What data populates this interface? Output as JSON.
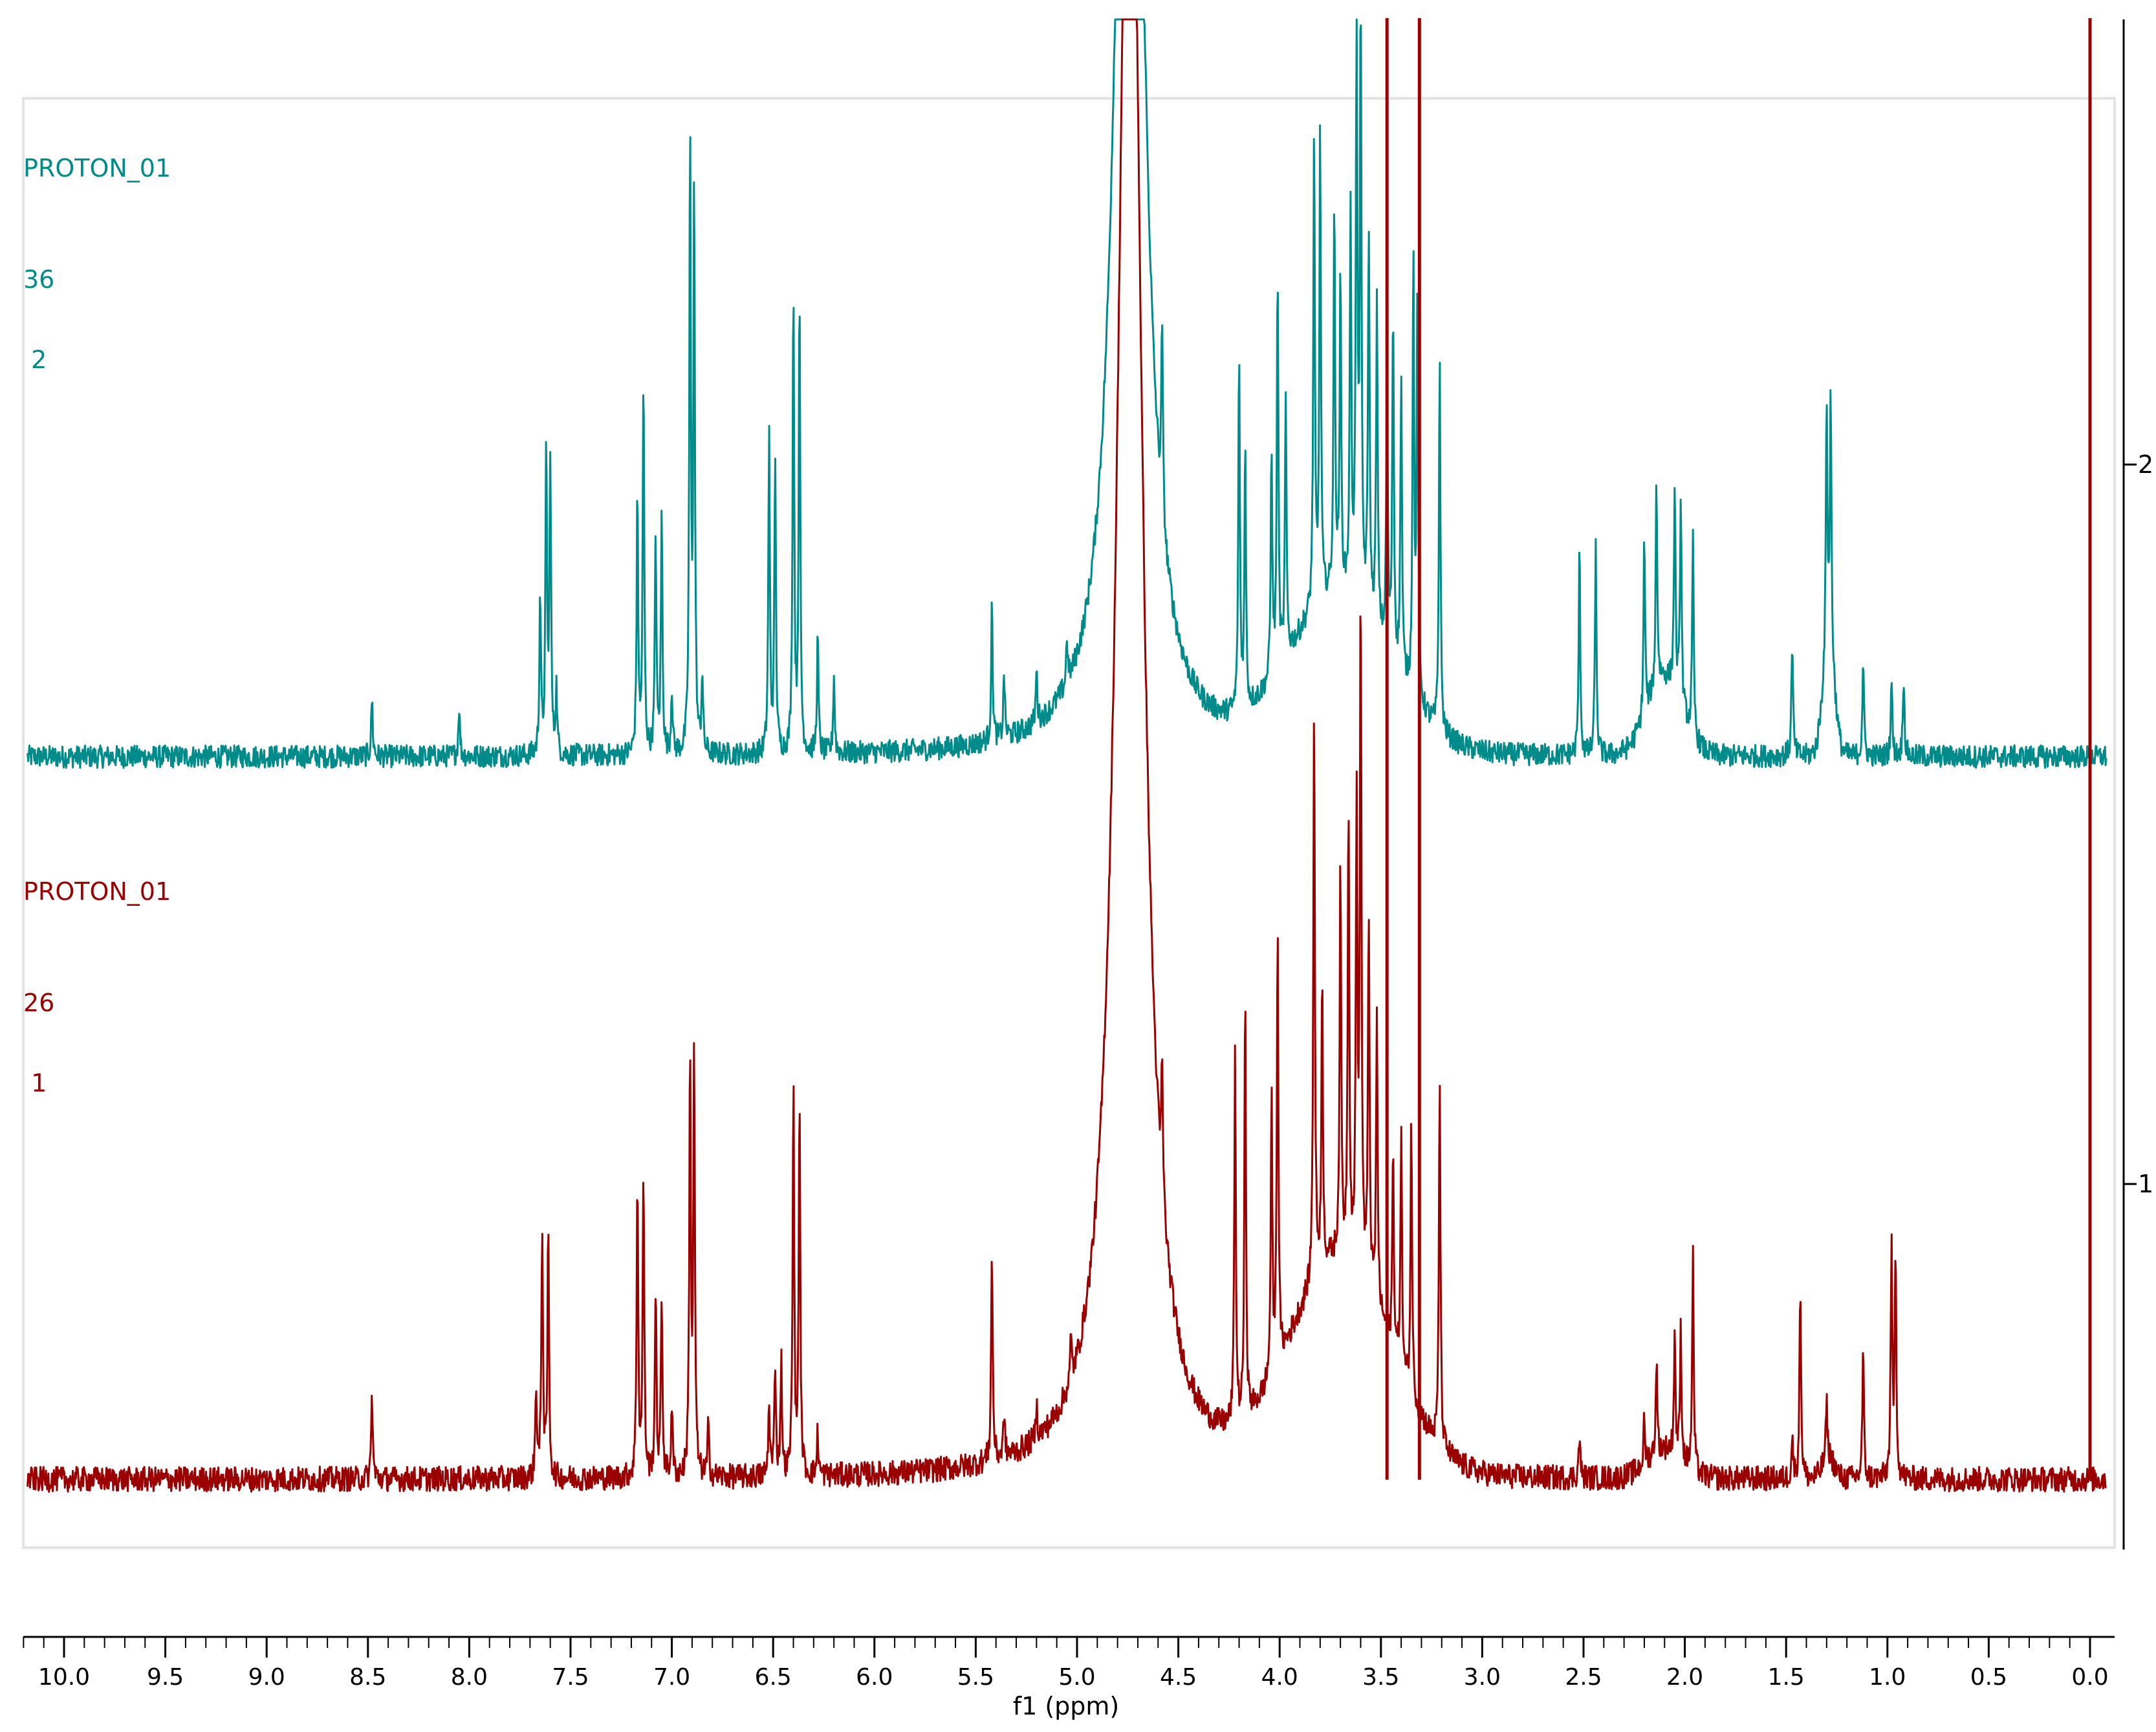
{
  "chart_data": {
    "type": "line",
    "xlabel": "f1 (ppm)",
    "x_reversed": true,
    "xlim": [
      10.2,
      -0.1
    ],
    "x_ticks": [
      "10.0",
      "9.5",
      "9.0",
      "8.5",
      "8.0",
      "7.5",
      "7.0",
      "6.5",
      "6.0",
      "5.5",
      "5.0",
      "4.5",
      "4.0",
      "3.5",
      "3.0",
      "2.5",
      "2.0",
      "1.5",
      "1.0",
      "0.5",
      "0.0"
    ],
    "right_axis_ticks": [
      "2",
      "1"
    ],
    "series": [
      {
        "name": "2",
        "label_lines": [
          "PROTON_01",
          "36",
          " 2"
        ],
        "color": "#008b8b",
        "peaks": [
          [
            8.48,
            0.09
          ],
          [
            8.05,
            0.08
          ],
          [
            7.65,
            0.25
          ],
          [
            7.62,
            0.47
          ],
          [
            7.6,
            0.46
          ],
          [
            7.57,
            0.1
          ],
          [
            7.17,
            0.4
          ],
          [
            7.14,
            0.58
          ],
          [
            7.08,
            0.34
          ],
          [
            7.05,
            0.37
          ],
          [
            7.0,
            0.1
          ],
          [
            6.91,
            0.95
          ],
          [
            6.89,
            0.86
          ],
          [
            6.85,
            0.12
          ],
          [
            6.52,
            0.49
          ],
          [
            6.49,
            0.46
          ],
          [
            6.4,
            0.73
          ],
          [
            6.37,
            0.7
          ],
          [
            6.28,
            0.18
          ],
          [
            6.2,
            0.12
          ],
          [
            5.42,
            0.21
          ],
          [
            5.36,
            0.1
          ],
          [
            5.2,
            0.08
          ],
          [
            5.05,
            0.07
          ],
          [
            4.58,
            0.3
          ],
          [
            4.2,
            0.56
          ],
          [
            4.17,
            0.4
          ],
          [
            4.04,
            0.36
          ],
          [
            4.01,
            0.62
          ],
          [
            3.97,
            0.4
          ],
          [
            3.83,
            0.73
          ],
          [
            3.8,
            0.72
          ],
          [
            3.73,
            0.6
          ],
          [
            3.7,
            0.48
          ],
          [
            3.65,
            0.58
          ],
          [
            3.62,
            0.9
          ],
          [
            3.6,
            0.92
          ],
          [
            3.56,
            0.6
          ],
          [
            3.52,
            0.5
          ],
          [
            3.47,
            0.4
          ],
          [
            3.44,
            0.55
          ],
          [
            3.4,
            0.46
          ],
          [
            3.34,
            0.68
          ],
          [
            3.32,
            0.62
          ],
          [
            3.21,
            0.58
          ],
          [
            2.52,
            0.32
          ],
          [
            2.44,
            0.32
          ],
          [
            2.2,
            0.28
          ],
          [
            2.14,
            0.32
          ],
          [
            2.05,
            0.32
          ],
          [
            2.02,
            0.32
          ],
          [
            1.96,
            0.3
          ],
          [
            1.47,
            0.18
          ],
          [
            1.3,
            0.39
          ],
          [
            1.28,
            0.4
          ],
          [
            1.12,
            0.15
          ],
          [
            0.98,
            0.12
          ],
          [
            0.92,
            0.13
          ]
        ]
      },
      {
        "name": "1",
        "label_lines": [
          "PROTON_01",
          "26",
          " 1"
        ],
        "color": "#9b0000",
        "peaks": [
          [
            8.48,
            0.12
          ],
          [
            7.67,
            0.13
          ],
          [
            7.64,
            0.36
          ],
          [
            7.61,
            0.35
          ],
          [
            7.17,
            0.43
          ],
          [
            7.14,
            0.43
          ],
          [
            7.08,
            0.26
          ],
          [
            7.05,
            0.25
          ],
          [
            7.0,
            0.1
          ],
          [
            6.91,
            0.6
          ],
          [
            6.89,
            0.59
          ],
          [
            6.82,
            0.07
          ],
          [
            6.52,
            0.1
          ],
          [
            6.49,
            0.16
          ],
          [
            6.46,
            0.16
          ],
          [
            6.4,
            0.55
          ],
          [
            6.37,
            0.52
          ],
          [
            6.28,
            0.06
          ],
          [
            5.42,
            0.3
          ],
          [
            5.36,
            0.06
          ],
          [
            5.2,
            0.05
          ],
          [
            5.03,
            0.06
          ],
          [
            4.58,
            0.18
          ],
          [
            4.22,
            0.52
          ],
          [
            4.17,
            0.59
          ],
          [
            4.04,
            0.39
          ],
          [
            4.01,
            0.62
          ],
          [
            3.83,
            0.82
          ],
          [
            3.79,
            0.4
          ],
          [
            3.7,
            0.55
          ],
          [
            3.66,
            0.65
          ],
          [
            3.62,
            0.64
          ],
          [
            3.6,
            0.96
          ],
          [
            3.56,
            0.52
          ],
          [
            3.52,
            0.4
          ],
          [
            3.44,
            0.28
          ],
          [
            3.4,
            0.33
          ],
          [
            3.35,
            0.39
          ],
          [
            3.21,
            0.52
          ],
          [
            2.52,
            0.06
          ],
          [
            2.2,
            0.06
          ],
          [
            2.14,
            0.13
          ],
          [
            2.05,
            0.17
          ],
          [
            2.02,
            0.18
          ],
          [
            1.96,
            0.3
          ],
          [
            1.47,
            0.06
          ],
          [
            1.43,
            0.28
          ],
          [
            1.3,
            0.08
          ],
          [
            1.12,
            0.18
          ],
          [
            0.98,
            0.32
          ],
          [
            0.96,
            0.32
          ]
        ],
        "water_peak": 4.76,
        "solvent_peaks": [
          3.47,
          3.31,
          0.0
        ]
      }
    ]
  }
}
